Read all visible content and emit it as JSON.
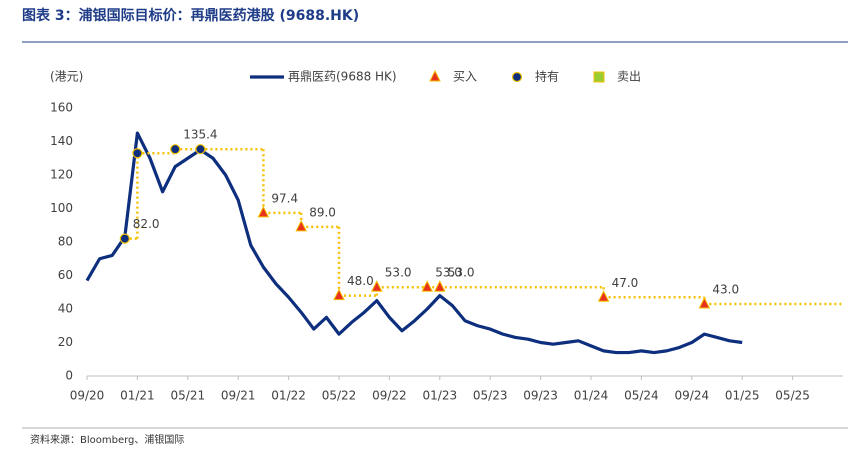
{
  "title": "图表 3：浦银国际目标价：再鼎医药港股 (9688.HK)",
  "source": "资料来源：Bloomberg、浦银国际",
  "chart_data": {
    "type": "line",
    "y_label": "(港元)",
    "xlim": [
      "2020-09",
      "2025-09"
    ],
    "xticks": [
      {
        "value": "2020-09",
        "label": "09/20"
      },
      {
        "value": "2021-01",
        "label": "01/21"
      },
      {
        "value": "2021-05",
        "label": "05/21"
      },
      {
        "value": "2021-09",
        "label": "09/21"
      },
      {
        "value": "2022-01",
        "label": "01/22"
      },
      {
        "value": "2022-05",
        "label": "05/22"
      },
      {
        "value": "2022-09",
        "label": "09/22"
      },
      {
        "value": "2023-01",
        "label": "01/23"
      },
      {
        "value": "2023-05",
        "label": "05/23"
      },
      {
        "value": "2023-09",
        "label": "09/23"
      },
      {
        "value": "2024-01",
        "label": "01/24"
      },
      {
        "value": "2024-05",
        "label": "05/24"
      },
      {
        "value": "2024-09",
        "label": "09/24"
      },
      {
        "value": "2025-01",
        "label": "01/25"
      },
      {
        "value": "2025-05",
        "label": "05/25"
      }
    ],
    "ylim": [
      0,
      160
    ],
    "yticks": [
      0,
      20,
      40,
      60,
      80,
      100,
      120,
      140,
      160
    ],
    "grid": false,
    "series": [
      {
        "name": "再鼎医药(9688 HK)",
        "color": "#0d2f7e",
        "x": [
          "2020-09",
          "2020-10",
          "2020-11",
          "2020-12",
          "2021-01",
          "2021-02",
          "2021-03",
          "2021-04",
          "2021-05",
          "2021-06",
          "2021-07",
          "2021-08",
          "2021-09",
          "2021-10",
          "2021-11",
          "2021-12",
          "2022-01",
          "2022-02",
          "2022-03",
          "2022-04",
          "2022-05",
          "2022-06",
          "2022-07",
          "2022-08",
          "2022-09",
          "2022-10",
          "2022-11",
          "2022-12",
          "2023-01",
          "2023-02",
          "2023-03",
          "2023-04",
          "2023-05",
          "2023-06",
          "2023-07",
          "2023-08",
          "2023-09",
          "2023-10",
          "2023-11",
          "2023-12",
          "2024-01",
          "2024-02",
          "2024-03",
          "2024-04",
          "2024-05",
          "2024-06",
          "2024-07",
          "2024-08",
          "2024-09",
          "2024-10",
          "2024-11",
          "2024-12",
          "2025-01"
        ],
        "values": [
          57,
          70,
          72,
          83,
          145,
          130,
          110,
          125,
          130,
          135,
          130,
          120,
          105,
          78,
          65,
          55,
          47,
          38,
          28,
          35,
          25,
          32,
          38,
          45,
          35,
          27,
          33,
          40,
          48,
          42,
          33,
          30,
          28,
          25,
          23,
          22,
          20,
          19,
          20,
          21,
          18,
          15,
          14,
          14,
          15,
          14,
          15,
          17,
          20,
          25,
          23,
          21,
          20
        ]
      },
      {
        "name": "买入",
        "marker": "triangle",
        "color": "#e8321b",
        "x": [
          "2021-11",
          "2022-02",
          "2022-05",
          "2022-08",
          "2022-12",
          "2023-01",
          "2024-02",
          "2024-10"
        ],
        "values": [
          97.4,
          89,
          48,
          53,
          53,
          53,
          47,
          43
        ],
        "value_labels": [
          "97.4",
          "89.0",
          "48.0",
          "53.0",
          "53.0",
          "53.0",
          "47.0",
          "43.0"
        ]
      },
      {
        "name": "持有",
        "marker": "circle",
        "color": "#0d2f7e",
        "x": [
          "2020-12",
          "2021-01",
          "2021-04",
          "2021-06"
        ],
        "values": [
          82,
          133,
          135.4,
          135.4
        ],
        "value_labels": [
          "82.0",
          null,
          "135.4",
          null
        ]
      },
      {
        "name": "卖出",
        "marker": "cross",
        "color": "#9acd32",
        "x": [],
        "values": []
      },
      {
        "style": "dotted",
        "color": "#f5c000",
        "x": [
          "2020-12",
          "2021-01",
          "2021-04",
          "2021-06",
          "2021-11",
          "2022-02",
          "2022-05",
          "2022-08",
          "2022-12",
          "2023-01",
          "2024-02",
          "2024-10"
        ],
        "values": [
          82,
          133,
          135.4,
          135.4,
          97.4,
          89,
          48,
          53,
          53,
          53,
          47,
          43
        ]
      }
    ]
  }
}
